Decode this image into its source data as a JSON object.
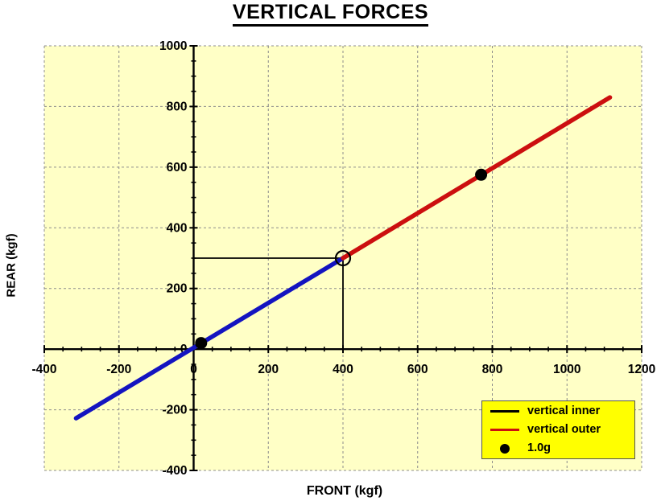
{
  "title": {
    "text": "VERTICAL FORCES"
  },
  "axes": {
    "x_title": "FRONT (kgf)",
    "y_title": "REAR (kgf)"
  },
  "legend": {
    "background": "#ffff00",
    "entries": [
      {
        "label": "vertical inner",
        "swatch": "line",
        "color": "#000000"
      },
      {
        "label": "vertical outer",
        "swatch": "line",
        "color": "#cc0f0f"
      },
      {
        "label": "1.0g",
        "swatch": "dot",
        "color": "#000000"
      }
    ]
  },
  "chart_data": {
    "type": "line",
    "title": "VERTICAL FORCES",
    "xlabel": "FRONT (kgf)",
    "ylabel": "REAR (kgf)",
    "xlim": [
      -400,
      1200
    ],
    "ylim": [
      -400,
      1000
    ],
    "x_ticks": [
      -400,
      -200,
      0,
      200,
      400,
      600,
      800,
      1000,
      1200
    ],
    "y_ticks": [
      -400,
      -200,
      0,
      200,
      400,
      600,
      800,
      1000
    ],
    "minor_tick_step": 50,
    "grid": {
      "show": true,
      "style": "dashed",
      "color": "#8c8c8c",
      "step": 200
    },
    "plot_background": "#ffffc6",
    "axis_color": "#000000",
    "series": [
      {
        "name": "vertical inner",
        "line_color": "#1414c0",
        "points": [
          [
            -315,
            -228
          ],
          [
            400,
            300
          ]
        ]
      },
      {
        "name": "vertical outer",
        "line_color": "#cc0f0f",
        "points": [
          [
            400,
            300
          ],
          [
            1115,
            830
          ]
        ]
      }
    ],
    "markers": [
      {
        "name": "1.0g",
        "style": "filled-dot",
        "color": "#000000",
        "points": [
          [
            20,
            20
          ],
          [
            770,
            575
          ]
        ]
      },
      {
        "name": "transition-point",
        "style": "open-circle",
        "color": "#000000",
        "points": [
          [
            400,
            300
          ]
        ]
      }
    ],
    "crosshair": {
      "x": 400,
      "y": 300,
      "color": "#000000"
    }
  }
}
